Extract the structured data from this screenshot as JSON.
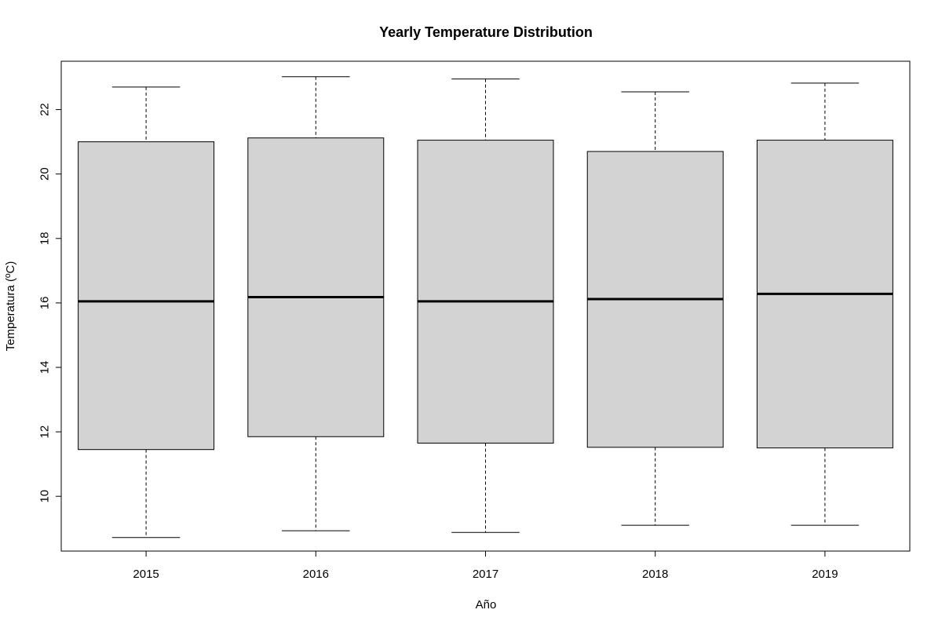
{
  "chart_data": {
    "type": "boxplot",
    "title": "Yearly Temperature Distribution",
    "xlabel": "Año",
    "ylabel": "Temperatura (ºC)",
    "categories": [
      "2015",
      "2016",
      "2017",
      "2018",
      "2019"
    ],
    "boxes": [
      {
        "category": "2015",
        "min": 8.72,
        "q1": 11.45,
        "median": 16.05,
        "q3": 21.0,
        "max": 22.7
      },
      {
        "category": "2016",
        "min": 8.93,
        "q1": 11.85,
        "median": 16.18,
        "q3": 21.12,
        "max": 23.02
      },
      {
        "category": "2017",
        "min": 8.88,
        "q1": 11.65,
        "median": 16.05,
        "q3": 21.05,
        "max": 22.95
      },
      {
        "category": "2018",
        "min": 9.1,
        "q1": 11.52,
        "median": 16.12,
        "q3": 20.7,
        "max": 22.55
      },
      {
        "category": "2019",
        "min": 9.1,
        "q1": 11.5,
        "median": 16.28,
        "q3": 21.05,
        "max": 22.82
      }
    ],
    "ylim": [
      8.3,
      23.5
    ],
    "yticks": [
      10,
      12,
      14,
      16,
      18,
      20,
      22
    ],
    "box_fill": "#d3d3d3",
    "grid": false,
    "legend": "none"
  }
}
